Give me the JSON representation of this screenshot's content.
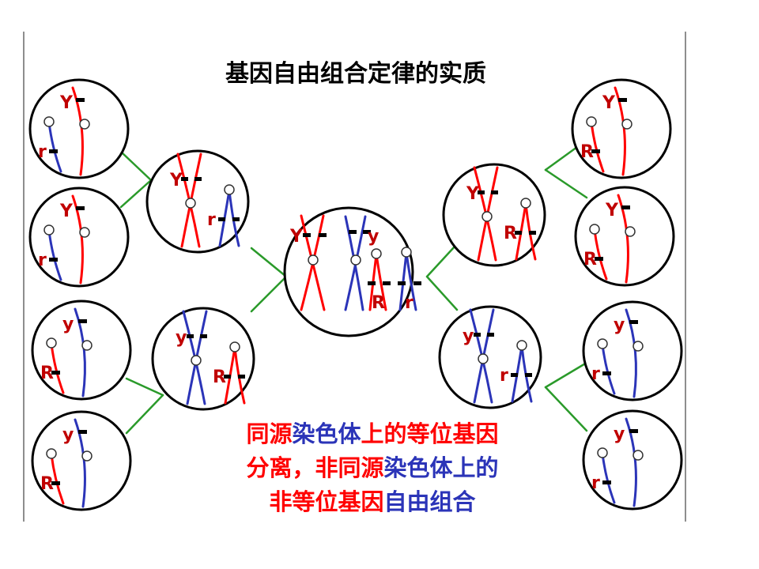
{
  "title": "基因自由组合定律的实质",
  "caption": {
    "line1": [
      {
        "text": "同源",
        "color": "red"
      },
      {
        "text": "染色体",
        "color": "blue"
      },
      {
        "text": "上的",
        "color": "red"
      },
      {
        "text": "等位基因",
        "color": "red"
      }
    ],
    "line2": [
      {
        "text": "分离，",
        "color": "red"
      },
      {
        "text": "非同源",
        "color": "red"
      },
      {
        "text": "染色体上的",
        "color": "blue"
      }
    ],
    "line3": [
      {
        "text": "非等位基因",
        "color": "red"
      },
      {
        "text": "自由组合",
        "color": "blue"
      }
    ]
  },
  "colors": {
    "red": "#ff0000",
    "blue": "#2b34b8",
    "link": "#2a9a2a",
    "label": "#c00000"
  },
  "cells": [
    {
      "id": "center",
      "labels": [
        "Y",
        "y",
        "R",
        "r"
      ]
    },
    {
      "id": "upper-left-parent",
      "labels": [
        "Y",
        "r"
      ]
    },
    {
      "id": "lower-left-parent",
      "labels": [
        "y",
        "R"
      ]
    },
    {
      "id": "upper-right-parent",
      "labels": [
        "Y",
        "R"
      ]
    },
    {
      "id": "lower-right-parent",
      "labels": [
        "y",
        "r"
      ]
    },
    {
      "id": "gamete-l1",
      "labels": [
        "Y",
        "r"
      ]
    },
    {
      "id": "gamete-l2",
      "labels": [
        "Y",
        "r"
      ]
    },
    {
      "id": "gamete-l3",
      "labels": [
        "y",
        "R"
      ]
    },
    {
      "id": "gamete-l4",
      "labels": [
        "y",
        "R"
      ]
    },
    {
      "id": "gamete-r1",
      "labels": [
        "Y",
        "R"
      ]
    },
    {
      "id": "gamete-r2",
      "labels": [
        "Y",
        "R"
      ]
    },
    {
      "id": "gamete-r3",
      "labels": [
        "y",
        "r"
      ]
    },
    {
      "id": "gamete-r4",
      "labels": [
        "y",
        "r"
      ]
    }
  ]
}
